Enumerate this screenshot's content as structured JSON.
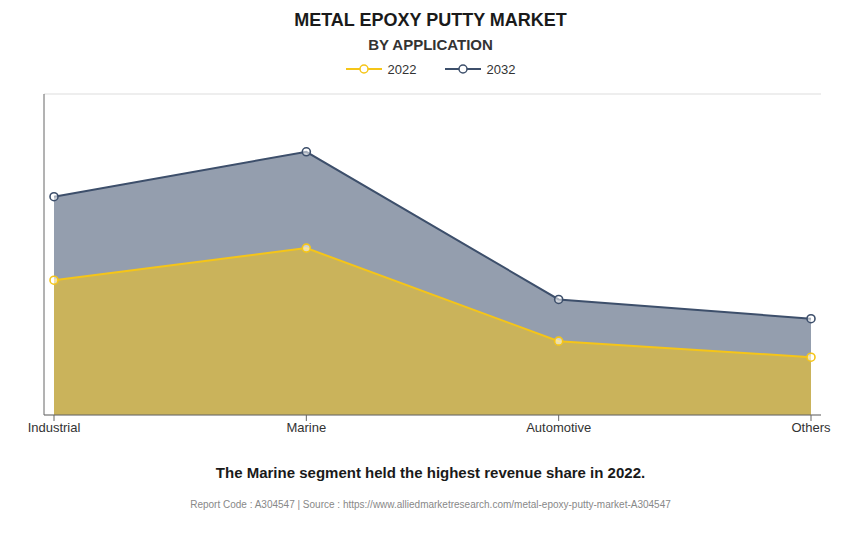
{
  "chart_data": {
    "type": "area",
    "title": "METAL EPOXY PUTTY MARKET",
    "subtitle": "BY APPLICATION",
    "categories": [
      "Industrial",
      "Marine",
      "Automotive",
      "Others"
    ],
    "series": [
      {
        "name": "2022",
        "color": "#f5c518",
        "values": [
          0.42,
          0.52,
          0.23,
          0.18
        ],
        "marker": "o"
      },
      {
        "name": "2032",
        "color": "#3d4f6b",
        "values": [
          0.68,
          0.82,
          0.36,
          0.3
        ],
        "marker": "o"
      }
    ],
    "ylim": [
      0,
      1.0
    ],
    "yticks": [
      0,
      0.16666666666666666,
      0.3333333333333333,
      0.5,
      0.6666666666666666,
      0.8333333333333334,
      1.0
    ],
    "grid": true,
    "legend": "top",
    "tick_labels": "x",
    "annotations": [
      "The Marine segment held the highest revenue share in 2022.",
      "Report Code : A304547  |  Source : https://www.alliedmarketresearch.com/metal-epoxy-putty-market-A304547"
    ]
  }
}
